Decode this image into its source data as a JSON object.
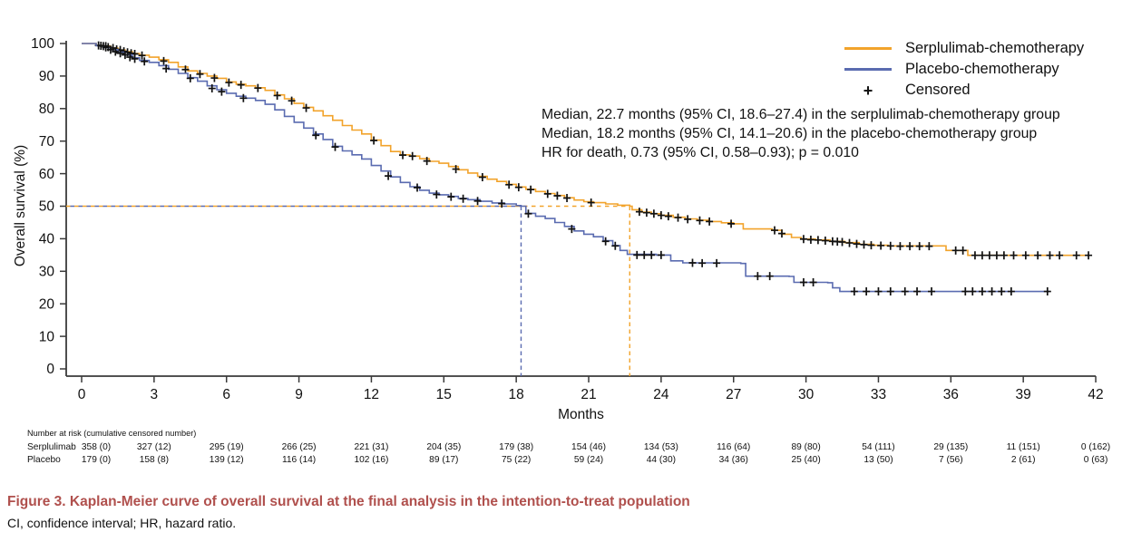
{
  "chart_data": {
    "type": "line",
    "subtype": "kaplan-meier-step",
    "title": "",
    "xlabel": "Months",
    "ylabel": "Overall survival (%)",
    "xlim": [
      0,
      42
    ],
    "ylim": [
      0,
      100
    ],
    "xticks": [
      0,
      3,
      6,
      9,
      12,
      15,
      18,
      21,
      24,
      27,
      30,
      33,
      36,
      39,
      42
    ],
    "yticks": [
      0,
      10,
      20,
      30,
      40,
      50,
      60,
      70,
      80,
      90,
      100
    ],
    "grid": false,
    "legend_position": "top-right",
    "median_guides": {
      "survival_pct": 50,
      "serplulimab_median_months": 22.7,
      "placebo_median_months": 18.2
    },
    "series": [
      {
        "name": "Serplulimab-chemotherapy",
        "color": "#F2A32B",
        "points": [
          [
            0,
            100
          ],
          [
            0.6,
            99.4
          ],
          [
            0.9,
            99.2
          ],
          [
            1.2,
            98.6
          ],
          [
            1.5,
            98
          ],
          [
            1.8,
            97.5
          ],
          [
            2.1,
            96.9
          ],
          [
            2.4,
            96.4
          ],
          [
            2.8,
            95.8
          ],
          [
            3.2,
            95
          ],
          [
            3.6,
            94.2
          ],
          [
            4,
            92.8
          ],
          [
            4.4,
            91.6
          ],
          [
            4.8,
            90.8
          ],
          [
            5.2,
            90
          ],
          [
            5.6,
            89.3
          ],
          [
            6,
            88.2
          ],
          [
            6.4,
            87.5
          ],
          [
            6.8,
            87
          ],
          [
            7.2,
            86.4
          ],
          [
            7.6,
            85.6
          ],
          [
            8,
            84.2
          ],
          [
            8.4,
            83
          ],
          [
            8.8,
            81.6
          ],
          [
            9.2,
            80.4
          ],
          [
            9.6,
            79.3
          ],
          [
            10,
            77.8
          ],
          [
            10.4,
            76.4
          ],
          [
            10.8,
            74.8
          ],
          [
            11.2,
            73.4
          ],
          [
            11.6,
            72.2
          ],
          [
            12,
            70.3
          ],
          [
            12.4,
            68.6
          ],
          [
            12.8,
            66.8
          ],
          [
            13.2,
            65.8
          ],
          [
            13.6,
            65.4
          ],
          [
            14,
            64.6
          ],
          [
            14.4,
            63.8
          ],
          [
            14.8,
            63.2
          ],
          [
            15.2,
            62.2
          ],
          [
            15.6,
            61.2
          ],
          [
            16,
            60.2
          ],
          [
            16.4,
            59.2
          ],
          [
            16.8,
            58.3
          ],
          [
            17.2,
            57.6
          ],
          [
            17.6,
            56.7
          ],
          [
            18,
            55.9
          ],
          [
            18.4,
            55.2
          ],
          [
            18.8,
            54.5
          ],
          [
            19.2,
            53.9
          ],
          [
            19.6,
            53.3
          ],
          [
            20,
            52.6
          ],
          [
            20.4,
            51.9
          ],
          [
            20.8,
            51.4
          ],
          [
            21.2,
            51.1
          ],
          [
            21.7,
            50.7
          ],
          [
            22.2,
            50.3
          ],
          [
            22.7,
            50
          ],
          [
            22.8,
            48.9
          ],
          [
            23.2,
            48.2
          ],
          [
            23.6,
            47.7
          ],
          [
            24,
            47.2
          ],
          [
            24.5,
            46.6
          ],
          [
            25,
            46.1
          ],
          [
            25.5,
            45.7
          ],
          [
            26,
            45.3
          ],
          [
            26.5,
            44.9
          ],
          [
            27,
            44.6
          ],
          [
            27.4,
            43
          ],
          [
            28.6,
            42.6
          ],
          [
            29,
            41.4
          ],
          [
            29.4,
            40.4
          ],
          [
            29.8,
            39.9
          ],
          [
            30.4,
            39.6
          ],
          [
            31,
            39.2
          ],
          [
            31.6,
            38.8
          ],
          [
            32.2,
            38.3
          ],
          [
            32.8,
            38
          ],
          [
            33.4,
            37.8
          ],
          [
            35.8,
            36.4
          ],
          [
            36.7,
            34.9
          ],
          [
            41.7,
            34.9
          ]
        ],
        "censored": [
          [
            0.7,
            99.4
          ],
          [
            0.9,
            99.2
          ],
          [
            1,
            99.2
          ],
          [
            1.1,
            98.9
          ],
          [
            1.3,
            98.6
          ],
          [
            1.45,
            98.2
          ],
          [
            1.6,
            98
          ],
          [
            1.75,
            97.6
          ],
          [
            1.9,
            97.3
          ],
          [
            2.05,
            97
          ],
          [
            2.2,
            96.8
          ],
          [
            2.5,
            96.3
          ],
          [
            3.4,
            94.6
          ],
          [
            4.3,
            92
          ],
          [
            4.9,
            90.6
          ],
          [
            5.5,
            89.4
          ],
          [
            6.1,
            88
          ],
          [
            6.6,
            87.3
          ],
          [
            7.3,
            86.3
          ],
          [
            8.1,
            84
          ],
          [
            8.7,
            82.4
          ],
          [
            9.3,
            80.2
          ],
          [
            12.1,
            70.2
          ],
          [
            13.3,
            65.7
          ],
          [
            13.7,
            65.4
          ],
          [
            14.3,
            63.9
          ],
          [
            15.5,
            61.4
          ],
          [
            16.6,
            58.9
          ],
          [
            17.7,
            56.6
          ],
          [
            18.1,
            55.8
          ],
          [
            18.6,
            55.1
          ],
          [
            19.3,
            53.8
          ],
          [
            19.7,
            53.2
          ],
          [
            20.1,
            52.5
          ],
          [
            21.1,
            51.1
          ],
          [
            23.1,
            48.3
          ],
          [
            23.4,
            48
          ],
          [
            23.7,
            47.7
          ],
          [
            24,
            47.2
          ],
          [
            24.3,
            46.9
          ],
          [
            24.7,
            46.5
          ],
          [
            25.1,
            46
          ],
          [
            25.6,
            45.6
          ],
          [
            26,
            45.3
          ],
          [
            26.9,
            44.6
          ],
          [
            28.7,
            42.6
          ],
          [
            29,
            41.6
          ],
          [
            29.9,
            39.9
          ],
          [
            30.2,
            39.7
          ],
          [
            30.5,
            39.6
          ],
          [
            30.8,
            39.4
          ],
          [
            31.1,
            39.2
          ],
          [
            31.3,
            39.1
          ],
          [
            31.5,
            39
          ],
          [
            31.8,
            38.7
          ],
          [
            32.1,
            38.4
          ],
          [
            32.4,
            38.2
          ],
          [
            32.7,
            38
          ],
          [
            33.1,
            37.9
          ],
          [
            33.5,
            37.8
          ],
          [
            33.9,
            37.7
          ],
          [
            34.3,
            37.7
          ],
          [
            34.7,
            37.7
          ],
          [
            35.1,
            37.7
          ],
          [
            36.2,
            36.4
          ],
          [
            36.5,
            36.4
          ],
          [
            37,
            34.9
          ],
          [
            37.3,
            34.9
          ],
          [
            37.6,
            34.9
          ],
          [
            37.9,
            34.9
          ],
          [
            38.2,
            34.9
          ],
          [
            38.6,
            34.9
          ],
          [
            39.1,
            34.9
          ],
          [
            39.6,
            34.9
          ],
          [
            40.1,
            34.9
          ],
          [
            40.5,
            34.9
          ],
          [
            41.2,
            34.9
          ],
          [
            41.7,
            34.9
          ]
        ]
      },
      {
        "name": "Placebo-chemotherapy",
        "color": "#5A6BB0",
        "points": [
          [
            0,
            100
          ],
          [
            0.6,
            99.3
          ],
          [
            0.9,
            98.8
          ],
          [
            1.2,
            98.1
          ],
          [
            1.5,
            97.3
          ],
          [
            1.8,
            96.5
          ],
          [
            2.1,
            95.6
          ],
          [
            2.4,
            94.8
          ],
          [
            2.8,
            94.2
          ],
          [
            3.2,
            93.2
          ],
          [
            3.6,
            92.1
          ],
          [
            4,
            90.8
          ],
          [
            4.4,
            89.5
          ],
          [
            4.8,
            88.4
          ],
          [
            5.2,
            87
          ],
          [
            5.6,
            85.8
          ],
          [
            6,
            84.7
          ],
          [
            6.4,
            83.8
          ],
          [
            6.8,
            83.2
          ],
          [
            7.2,
            82.5
          ],
          [
            7.6,
            81.3
          ],
          [
            8,
            79.6
          ],
          [
            8.4,
            77.6
          ],
          [
            8.8,
            75.8
          ],
          [
            9.2,
            74
          ],
          [
            9.6,
            72.2
          ],
          [
            10,
            70.5
          ],
          [
            10.4,
            68.4
          ],
          [
            10.8,
            67
          ],
          [
            11.2,
            65.8
          ],
          [
            11.6,
            64.5
          ],
          [
            12,
            62.5
          ],
          [
            12.4,
            60.8
          ],
          [
            12.8,
            59
          ],
          [
            13.2,
            57.3
          ],
          [
            13.6,
            56
          ],
          [
            14,
            54.9
          ],
          [
            14.4,
            54
          ],
          [
            14.8,
            53.5
          ],
          [
            15.2,
            53
          ],
          [
            15.6,
            52.4
          ],
          [
            16,
            52
          ],
          [
            16.5,
            51.5
          ],
          [
            17,
            51
          ],
          [
            17.5,
            50.7
          ],
          [
            18,
            50.2
          ],
          [
            18.2,
            50
          ],
          [
            18.4,
            47.8
          ],
          [
            18.8,
            46.9
          ],
          [
            19.2,
            46.2
          ],
          [
            19.6,
            45
          ],
          [
            20,
            43.8
          ],
          [
            20.4,
            42.4
          ],
          [
            20.8,
            41.4
          ],
          [
            21.2,
            40.6
          ],
          [
            21.6,
            39.4
          ],
          [
            22,
            37.9
          ],
          [
            22.3,
            36.4
          ],
          [
            22.6,
            35.2
          ],
          [
            23.8,
            35
          ],
          [
            24.4,
            33.2
          ],
          [
            24.9,
            32.6
          ],
          [
            27.3,
            32.4
          ],
          [
            27.5,
            28.5
          ],
          [
            29.3,
            28.4
          ],
          [
            29.5,
            26.6
          ],
          [
            30.9,
            26.5
          ],
          [
            31.1,
            24.9
          ],
          [
            31.4,
            23.8
          ],
          [
            40.1,
            23.8
          ]
        ],
        "censored": [
          [
            0.8,
            99.3
          ],
          [
            1,
            98.8
          ],
          [
            1.2,
            98.1
          ],
          [
            1.4,
            97.5
          ],
          [
            1.6,
            97
          ],
          [
            1.8,
            96.5
          ],
          [
            2,
            95.8
          ],
          [
            2.2,
            95.3
          ],
          [
            2.6,
            94.5
          ],
          [
            3.5,
            92.3
          ],
          [
            4.5,
            89.3
          ],
          [
            5.4,
            86.2
          ],
          [
            5.8,
            85.2
          ],
          [
            6.7,
            83.2
          ],
          [
            9.7,
            71.8
          ],
          [
            10.5,
            68.2
          ],
          [
            12.7,
            59.3
          ],
          [
            13.9,
            55.7
          ],
          [
            14.7,
            53.6
          ],
          [
            15.3,
            52.9
          ],
          [
            15.8,
            52.3
          ],
          [
            16.4,
            51.6
          ],
          [
            17.4,
            50.8
          ],
          [
            18.5,
            47.7
          ],
          [
            20.3,
            43
          ],
          [
            21.7,
            39.2
          ],
          [
            22.1,
            37.8
          ],
          [
            23,
            35
          ],
          [
            23.3,
            35
          ],
          [
            23.6,
            35
          ],
          [
            24,
            35
          ],
          [
            25.3,
            32.6
          ],
          [
            25.7,
            32.5
          ],
          [
            26.3,
            32.5
          ],
          [
            28,
            28.5
          ],
          [
            28.5,
            28.5
          ],
          [
            29.9,
            26.6
          ],
          [
            30.3,
            26.6
          ],
          [
            32,
            23.8
          ],
          [
            32.5,
            23.8
          ],
          [
            33,
            23.8
          ],
          [
            33.5,
            23.8
          ],
          [
            34.1,
            23.8
          ],
          [
            34.6,
            23.8
          ],
          [
            35.2,
            23.8
          ],
          [
            36.6,
            23.8
          ],
          [
            36.9,
            23.8
          ],
          [
            37.3,
            23.8
          ],
          [
            37.7,
            23.8
          ],
          [
            38.1,
            23.8
          ],
          [
            38.5,
            23.8
          ],
          [
            40,
            23.8
          ]
        ]
      }
    ]
  },
  "legend": {
    "serplulimab_label": "Serplulimab-chemotherapy",
    "placebo_label": "Placebo-chemotherapy",
    "censored_symbol": "+",
    "censored_label": "Censored"
  },
  "annotation": {
    "lines": [
      "Median, 22.7 months (95% CI, 18.6–27.4) in the serplulimab-chemotherapy group",
      "Median, 18.2 months (95% CI, 14.1–20.6) in the placebo-chemotherapy group",
      "HR for death, 0.73 (95% CI, 0.58–0.93); p = 0.010"
    ]
  },
  "risk_table": {
    "header": "Number at risk (cumulative censored number)",
    "rows": [
      {
        "label": "Serplulimab",
        "values": [
          "358 (0)",
          "327 (12)",
          "295 (19)",
          "266 (25)",
          "221 (31)",
          "204 (35)",
          "179 (38)",
          "154 (46)",
          "134 (53)",
          "116 (64)",
          "89 (80)",
          "54 (111)",
          "29 (135)",
          "11 (151)",
          "0 (162)"
        ]
      },
      {
        "label": "Placebo",
        "values": [
          "179 (0)",
          "158 (8)",
          "139 (12)",
          "116 (14)",
          "102 (16)",
          "89 (17)",
          "75 (22)",
          "59 (24)",
          "44 (30)",
          "34 (36)",
          "25 (40)",
          "13 (50)",
          "7 (56)",
          "2 (61)",
          "0 (63)"
        ]
      }
    ]
  },
  "caption": {
    "title": "Figure 3.  Kaplan-Meier curve of overall survival at the final analysis in the intention-to-treat population",
    "title_color": "#B0504D",
    "footnote": "CI, confidence interval; HR, hazard ratio."
  },
  "colors": {
    "axis": "#3a3a3a",
    "text": "#111111",
    "censor_mark": "#111111"
  }
}
